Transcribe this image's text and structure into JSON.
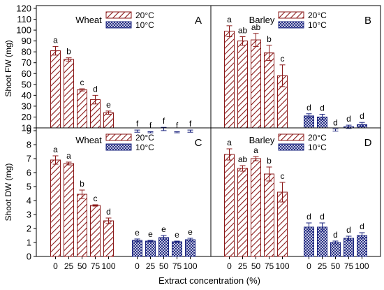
{
  "figure": {
    "xlabel": "Extract concentration (%)",
    "ylabel_top": "Shoot FW (mg)",
    "ylabel_bottom": "Shoot DW (mg)"
  },
  "colors": {
    "temp20": "#8b1a1a",
    "temp10": "#1a237e",
    "error": "#000000",
    "axis": "#000000"
  },
  "chart_data": [
    {
      "type": "bar",
      "panel": "A",
      "crop": "Wheat",
      "categories": [
        "0",
        "25",
        "50",
        "75",
        "100"
      ],
      "ylim": [
        10,
        120
      ],
      "yticks": [
        10,
        20,
        30,
        40,
        50,
        60,
        70,
        80,
        90,
        100,
        110,
        120
      ],
      "series": [
        {
          "name": "20°C",
          "pattern": "diagonal",
          "values": [
            81,
            73,
            45,
            36,
            24
          ],
          "errors": [
            4,
            1.5,
            1,
            4,
            1.5
          ],
          "letters": [
            "a",
            "b",
            "c",
            "d",
            "e"
          ]
        },
        {
          "name": "10°C",
          "pattern": "crosshatch",
          "values": [
            7,
            6,
            9,
            6,
            7
          ],
          "errors": [
            1,
            0.5,
            1.5,
            0.5,
            1
          ],
          "letters": [
            "f",
            "f",
            "f",
            "f",
            "f"
          ]
        }
      ]
    },
    {
      "type": "bar",
      "panel": "B",
      "crop": "Barley",
      "categories": [
        "0",
        "25",
        "50",
        "75",
        "100"
      ],
      "ylim": [
        10,
        120
      ],
      "yticks": [
        10,
        20,
        30,
        40,
        50,
        60,
        70,
        80,
        90,
        100,
        110,
        120
      ],
      "series": [
        {
          "name": "20°C",
          "pattern": "diagonal",
          "values": [
            99,
            90,
            91,
            79,
            58
          ],
          "errors": [
            5,
            4,
            6,
            7,
            10
          ],
          "letters": [
            "a",
            "ab",
            "ab",
            "b",
            "c"
          ]
        },
        {
          "name": "10°C",
          "pattern": "crosshatch",
          "values": [
            21,
            20,
            8,
            11,
            13
          ],
          "errors": [
            2,
            2.5,
            1,
            1.5,
            2
          ],
          "letters": [
            "d",
            "d",
            "d",
            "d",
            "d"
          ]
        }
      ]
    },
    {
      "type": "bar",
      "panel": "C",
      "crop": "Wheat",
      "categories": [
        "0",
        "25",
        "50",
        "75",
        "100"
      ],
      "ylim": [
        0,
        9
      ],
      "yticks": [
        0,
        1,
        2,
        3,
        4,
        5,
        6,
        7,
        8,
        9
      ],
      "series": [
        {
          "name": "20°C",
          "pattern": "diagonal",
          "values": [
            6.9,
            6.65,
            4.45,
            3.65,
            2.55
          ],
          "errors": [
            0.3,
            0.1,
            0.3,
            0.05,
            0.2
          ],
          "letters": [
            "a",
            "a",
            "b",
            "c",
            "d"
          ]
        },
        {
          "name": "10°C",
          "pattern": "crosshatch",
          "values": [
            1.15,
            1.1,
            1.35,
            1.05,
            1.2
          ],
          "errors": [
            0.1,
            0.05,
            0.15,
            0.05,
            0.1
          ],
          "letters": [
            "e",
            "e",
            "e",
            "e",
            "e"
          ]
        }
      ]
    },
    {
      "type": "bar",
      "panel": "D",
      "crop": "Barley",
      "categories": [
        "0",
        "25",
        "50",
        "75",
        "100"
      ],
      "ylim": [
        0,
        9
      ],
      "yticks": [
        0,
        1,
        2,
        3,
        4,
        5,
        6,
        7,
        8,
        9
      ],
      "series": [
        {
          "name": "20°C",
          "pattern": "diagonal",
          "values": [
            7.3,
            6.3,
            7.0,
            5.9,
            4.6
          ],
          "errors": [
            0.4,
            0.2,
            0.15,
            0.5,
            0.7
          ],
          "letters": [
            "a",
            "ab",
            "a",
            "b",
            "c"
          ]
        },
        {
          "name": "10°C",
          "pattern": "crosshatch",
          "values": [
            2.1,
            2.1,
            1.0,
            1.3,
            1.5
          ],
          "errors": [
            0.3,
            0.3,
            0.1,
            0.15,
            0.2
          ],
          "letters": [
            "d",
            "d",
            "d",
            "d",
            "d"
          ]
        }
      ]
    }
  ]
}
